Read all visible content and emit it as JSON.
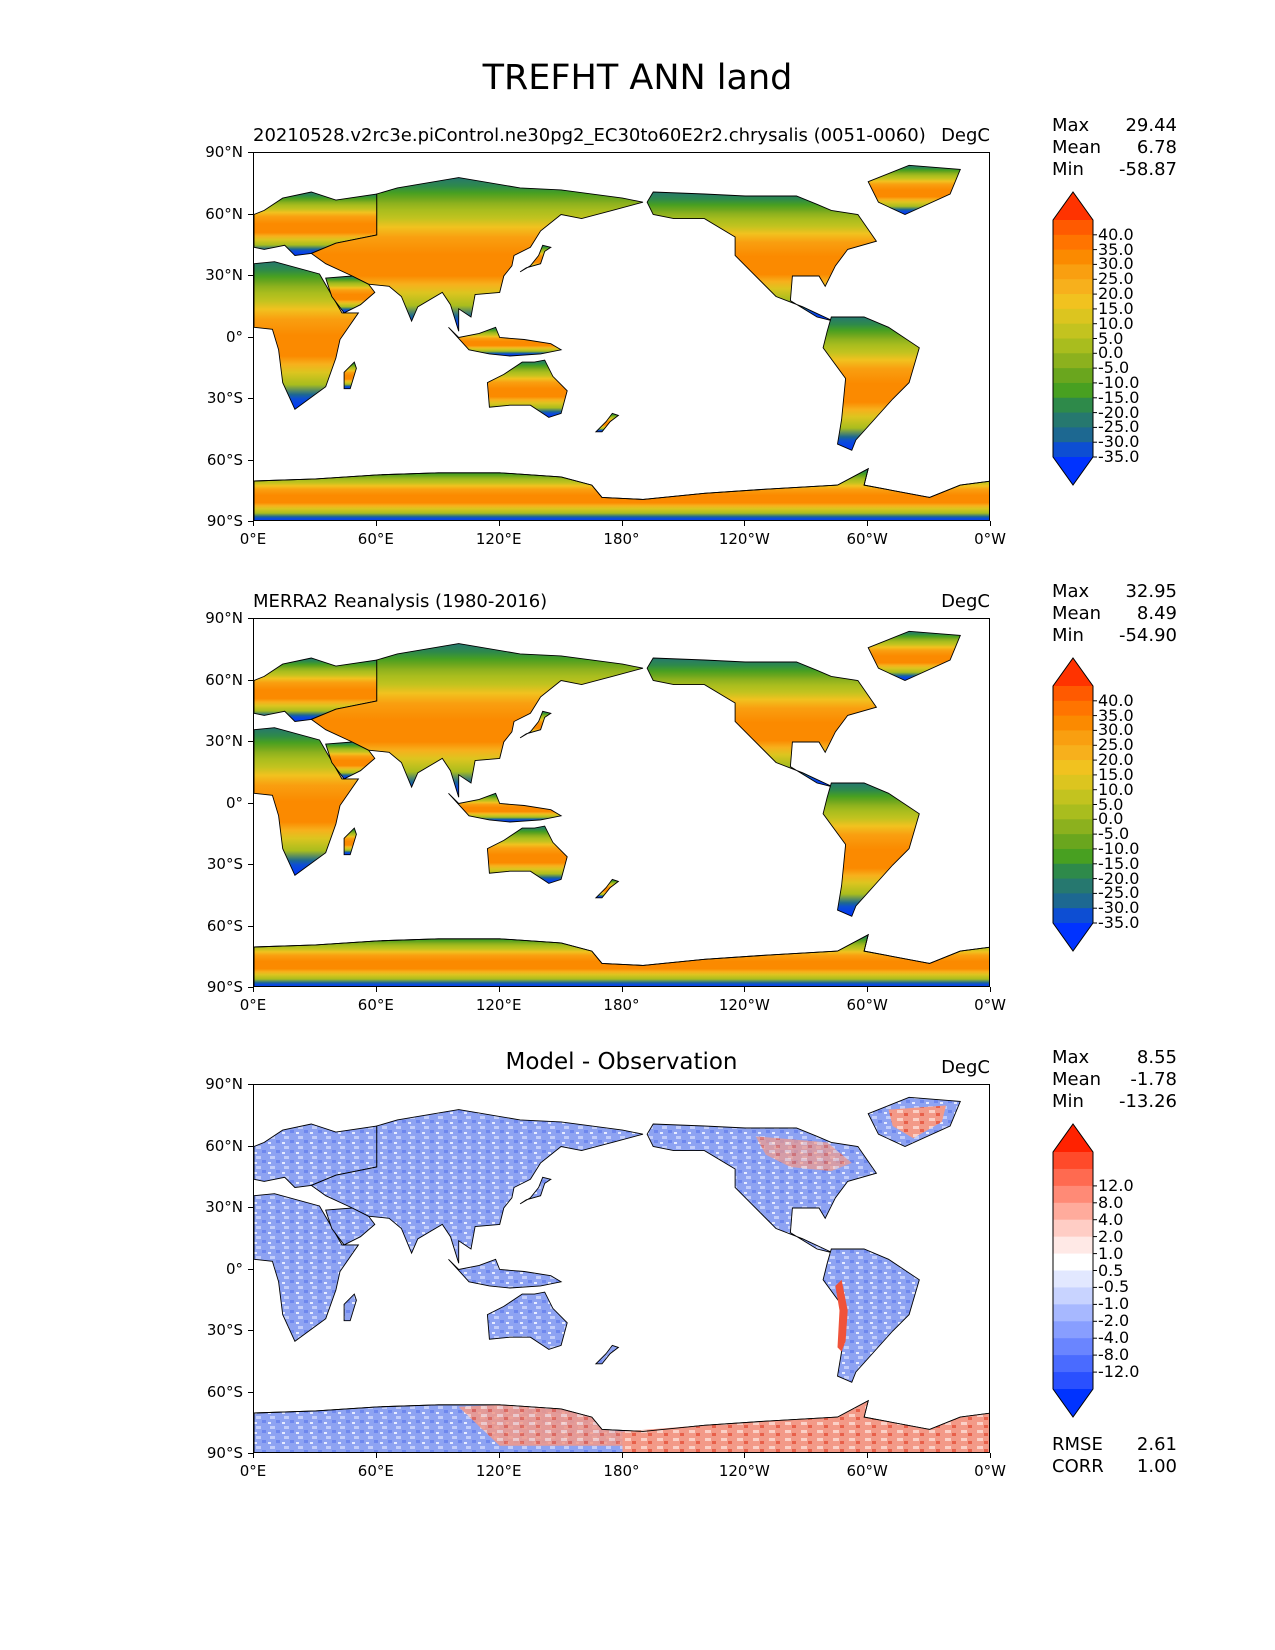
{
  "title": "TREFHT ANN land",
  "axes": {
    "lat_ticks": [
      "90°N",
      "60°N",
      "30°N",
      "0°",
      "30°S",
      "60°S",
      "90°S"
    ],
    "lon_ticks": [
      "0°E",
      "60°E",
      "120°E",
      "180°",
      "120°W",
      "60°W",
      "0°W"
    ]
  },
  "panels": [
    {
      "title": "20210528.v2rc3e.piControl.ne30pg2_EC30to60E2r2.chrysalis (0051-0060)",
      "title_style": "left",
      "units": "DegC",
      "stats": [
        {
          "label": "Max",
          "value": "29.44"
        },
        {
          "label": "Mean",
          "value": "6.78"
        },
        {
          "label": "Min",
          "value": "-58.87"
        }
      ],
      "colorbar": "temperature"
    },
    {
      "title": "MERRA2 Reanalysis (1980-2016)",
      "title_style": "left",
      "units": "DegC",
      "stats": [
        {
          "label": "Max",
          "value": "32.95"
        },
        {
          "label": "Mean",
          "value": "8.49"
        },
        {
          "label": "Min",
          "value": "-54.90"
        }
      ],
      "colorbar": "temperature"
    },
    {
      "title": "Model - Observation",
      "title_style": "center",
      "units": "DegC",
      "stats": [
        {
          "label": "Max",
          "value": "8.55"
        },
        {
          "label": "Mean",
          "value": "-1.78"
        },
        {
          "label": "Min",
          "value": "-13.26"
        }
      ],
      "colorbar": "difference",
      "metrics": [
        {
          "label": "RMSE",
          "value": "2.61"
        },
        {
          "label": "CORR",
          "value": "1.00"
        }
      ]
    }
  ],
  "colorbars": {
    "temperature": {
      "ticks": [
        "40.0",
        "35.0",
        "30.0",
        "25.0",
        "20.0",
        "15.0",
        "10.0",
        "5.0",
        "0.0",
        "-5.0",
        "-10.0",
        "-15.0",
        "-20.0",
        "-25.0",
        "-30.0",
        "-35.0"
      ],
      "colors": [
        "#ff3300",
        "#ff5a00",
        "#ff7400",
        "#fb8a00",
        "#f99f10",
        "#f7b01c",
        "#f1c21f",
        "#dcc51f",
        "#c3c31f",
        "#a9bd1e",
        "#8cb11e",
        "#6aa61e",
        "#48a021",
        "#2e8a4a",
        "#26786f",
        "#1d6891",
        "#0d4ed3",
        "#0033ff"
      ]
    },
    "difference": {
      "ticks": [
        "12.0",
        "8.0",
        "4.0",
        "2.0",
        "1.0",
        "0.5",
        "-0.5",
        "-1.0",
        "-2.0",
        "-4.0",
        "-8.0",
        "-12.0"
      ],
      "colors": [
        "#ff2200",
        "#ff4a2a",
        "#ff6a50",
        "#ff8a76",
        "#ffab9c",
        "#ffcdc5",
        "#ffe9e6",
        "#ffffff",
        "#e2e8ff",
        "#c8d3ff",
        "#a7b8ff",
        "#889eff",
        "#6a85ff",
        "#4a6bff",
        "#2a50ff",
        "#0033ff"
      ]
    }
  }
}
